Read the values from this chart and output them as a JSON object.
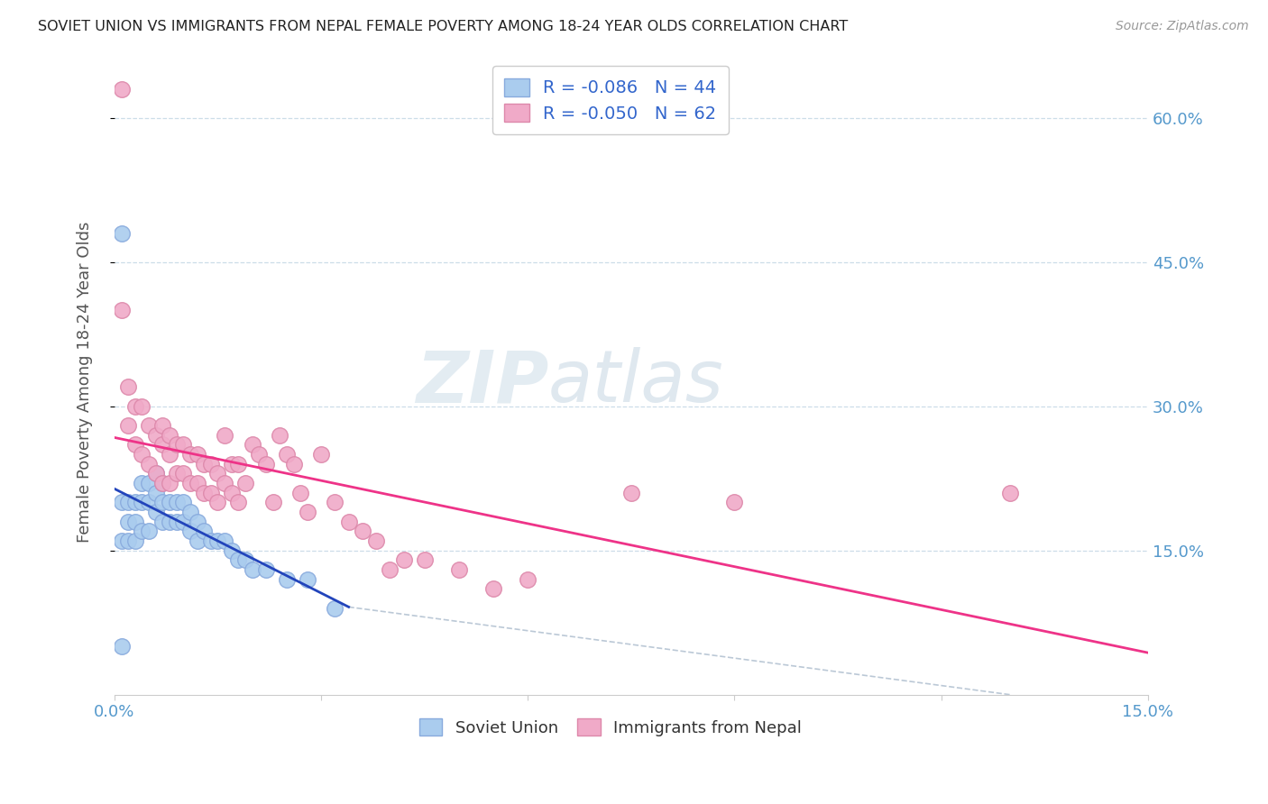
{
  "title": "SOVIET UNION VS IMMIGRANTS FROM NEPAL FEMALE POVERTY AMONG 18-24 YEAR OLDS CORRELATION CHART",
  "source": "Source: ZipAtlas.com",
  "ylabel": "Female Poverty Among 18-24 Year Olds",
  "xlim": [
    0.0,
    0.15
  ],
  "ylim": [
    0.0,
    0.65
  ],
  "soviet_color": "#aaccee",
  "soviet_edge": "#88aadd",
  "nepal_color": "#f0aac8",
  "nepal_edge": "#dd88aa",
  "trend_soviet_color": "#2244bb",
  "trend_nepal_color": "#ee3388",
  "trend_dashed_color": "#aabbcc",
  "grid_color": "#ccdde8",
  "axis_label_color": "#5599cc",
  "background_color": "#ffffff",
  "soviet_x": [
    0.001,
    0.001,
    0.001,
    0.002,
    0.002,
    0.002,
    0.003,
    0.003,
    0.003,
    0.004,
    0.004,
    0.004,
    0.005,
    0.005,
    0.005,
    0.006,
    0.006,
    0.006,
    0.007,
    0.007,
    0.007,
    0.008,
    0.008,
    0.009,
    0.009,
    0.01,
    0.01,
    0.011,
    0.011,
    0.012,
    0.012,
    0.013,
    0.014,
    0.015,
    0.016,
    0.017,
    0.018,
    0.019,
    0.02,
    0.022,
    0.025,
    0.028,
    0.032,
    0.001
  ],
  "soviet_y": [
    0.48,
    0.2,
    0.16,
    0.2,
    0.18,
    0.16,
    0.2,
    0.18,
    0.16,
    0.22,
    0.2,
    0.17,
    0.22,
    0.2,
    0.17,
    0.23,
    0.21,
    0.19,
    0.22,
    0.2,
    0.18,
    0.2,
    0.18,
    0.2,
    0.18,
    0.2,
    0.18,
    0.19,
    0.17,
    0.18,
    0.16,
    0.17,
    0.16,
    0.16,
    0.16,
    0.15,
    0.14,
    0.14,
    0.13,
    0.13,
    0.12,
    0.12,
    0.09,
    0.05
  ],
  "nepal_x": [
    0.001,
    0.001,
    0.002,
    0.002,
    0.003,
    0.003,
    0.004,
    0.004,
    0.005,
    0.005,
    0.006,
    0.006,
    0.007,
    0.007,
    0.007,
    0.008,
    0.008,
    0.008,
    0.009,
    0.009,
    0.01,
    0.01,
    0.011,
    0.011,
    0.012,
    0.012,
    0.013,
    0.013,
    0.014,
    0.014,
    0.015,
    0.015,
    0.016,
    0.016,
    0.017,
    0.017,
    0.018,
    0.018,
    0.019,
    0.02,
    0.021,
    0.022,
    0.023,
    0.024,
    0.025,
    0.026,
    0.027,
    0.028,
    0.03,
    0.032,
    0.034,
    0.036,
    0.038,
    0.04,
    0.042,
    0.045,
    0.05,
    0.055,
    0.06,
    0.075,
    0.09,
    0.13
  ],
  "nepal_y": [
    0.63,
    0.4,
    0.32,
    0.28,
    0.3,
    0.26,
    0.3,
    0.25,
    0.28,
    0.24,
    0.27,
    0.23,
    0.28,
    0.26,
    0.22,
    0.27,
    0.25,
    0.22,
    0.26,
    0.23,
    0.26,
    0.23,
    0.25,
    0.22,
    0.25,
    0.22,
    0.24,
    0.21,
    0.24,
    0.21,
    0.23,
    0.2,
    0.27,
    0.22,
    0.24,
    0.21,
    0.24,
    0.2,
    0.22,
    0.26,
    0.25,
    0.24,
    0.2,
    0.27,
    0.25,
    0.24,
    0.21,
    0.19,
    0.25,
    0.2,
    0.18,
    0.17,
    0.16,
    0.13,
    0.14,
    0.14,
    0.13,
    0.11,
    0.12,
    0.21,
    0.2,
    0.21
  ]
}
